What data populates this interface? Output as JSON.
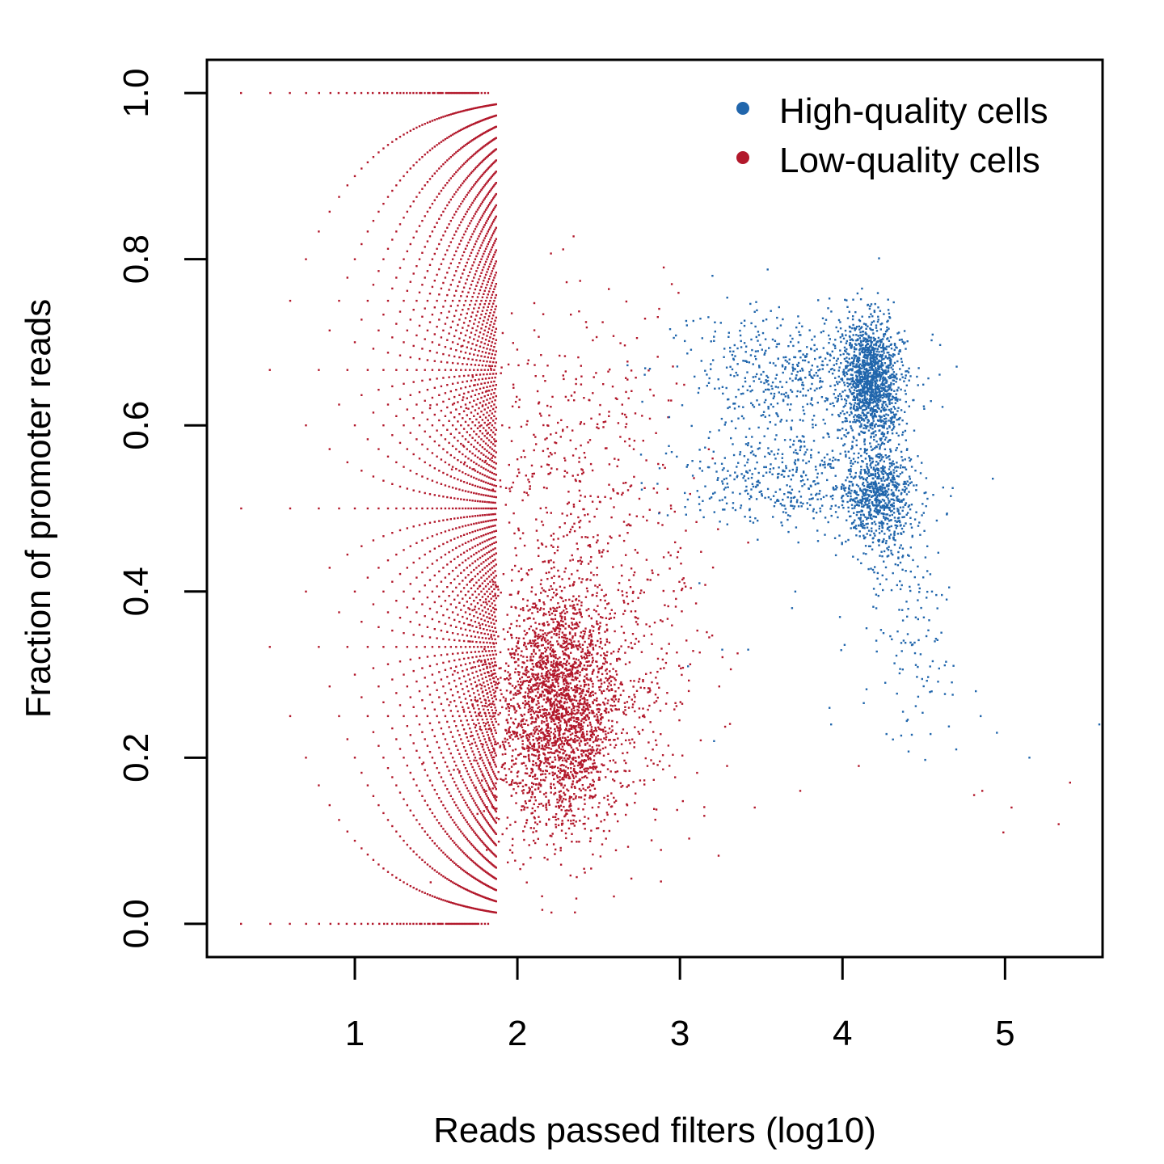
{
  "chart_data": {
    "type": "scatter",
    "title": "",
    "xlabel": "Reads passed filters (log10)",
    "ylabel": "Fraction of promoter reads",
    "xlim": [
      0.09,
      5.6
    ],
    "ylim": [
      -0.04,
      1.04
    ],
    "x_ticks": [
      1,
      2,
      3,
      4,
      5
    ],
    "x_tick_labels": [
      "1",
      "2",
      "3",
      "4",
      "5"
    ],
    "y_ticks": [
      0.0,
      0.2,
      0.4,
      0.6,
      0.8,
      1.0
    ],
    "y_tick_labels": [
      "0.0",
      "0.2",
      "0.4",
      "0.6",
      "0.8",
      "1.0"
    ],
    "grid": false,
    "legend_position": "top-right",
    "series": [
      {
        "name": "High-quality cells",
        "color": "#2166ac",
        "clusters": [
          {
            "center": [
              4.18,
              0.655
            ],
            "spread": [
              0.09,
              0.035
            ],
            "n": 1300
          },
          {
            "center": [
              4.22,
              0.515
            ],
            "spread": [
              0.1,
              0.03
            ],
            "n": 700
          },
          {
            "center": [
              3.7,
              0.66
            ],
            "spread": [
              0.35,
              0.04
            ],
            "n": 550
          },
          {
            "center": [
              3.65,
              0.535
            ],
            "spread": [
              0.35,
              0.03
            ],
            "n": 450
          },
          {
            "center": [
              4.35,
              0.43
            ],
            "spread": [
              0.15,
              0.06
            ],
            "n": 160
          },
          {
            "center": [
              4.5,
              0.3
            ],
            "spread": [
              0.1,
              0.05
            ],
            "n": 50
          }
        ],
        "sparse_points": [
          [
            5.58,
            0.24
          ],
          [
            5.15,
            0.2
          ],
          [
            4.95,
            0.23
          ],
          [
            4.85,
            0.25
          ],
          [
            4.82,
            0.28
          ],
          [
            4.7,
            0.21
          ],
          [
            3.93,
            0.24
          ],
          [
            3.92,
            0.26
          ],
          [
            3.71,
            0.4
          ],
          [
            3.69,
            0.38
          ],
          [
            3.42,
            0.33
          ],
          [
            3.26,
            0.33
          ],
          [
            3.21,
            0.22
          ],
          [
            3.12,
            0.41
          ],
          [
            3.2,
            0.78
          ],
          [
            3.05,
            0.31
          ]
        ]
      },
      {
        "name": "Low-quality cells",
        "color": "#b2182b",
        "grid_fractions": "k/n for n = 2 to 74 reads",
        "clusters": [
          {
            "center": [
              2.25,
              0.26
            ],
            "spread": [
              0.2,
              0.075
            ],
            "n": 2600
          },
          {
            "center": [
              2.3,
              0.58
            ],
            "spread": [
              0.3,
              0.09
            ],
            "n": 350
          },
          {
            "center": [
              2.6,
              0.32
            ],
            "spread": [
              0.3,
              0.11
            ],
            "n": 450
          }
        ],
        "zero_one_row_x": [
          0.3,
          0.48,
          0.6,
          0.7,
          0.78,
          0.85,
          0.9,
          0.95,
          1.0,
          1.04,
          1.08,
          1.11,
          1.15,
          1.18,
          1.2,
          1.23,
          1.26,
          1.28,
          1.3,
          1.32,
          1.34,
          1.36,
          1.38,
          1.4,
          1.41,
          1.43,
          1.45,
          1.46,
          1.48,
          1.49,
          1.51,
          1.52,
          1.53,
          1.54,
          1.56,
          1.57,
          1.58,
          1.59,
          1.6,
          1.61,
          1.62,
          1.63,
          1.64,
          1.65,
          1.66,
          1.67,
          1.68,
          1.69,
          1.7,
          1.71,
          1.72,
          1.73,
          1.74,
          1.75,
          1.76,
          1.78,
          1.8,
          1.82
        ],
        "sparse_points": [
          [
            5.4,
            0.17
          ],
          [
            5.33,
            0.12
          ],
          [
            5.04,
            0.14
          ],
          [
            4.99,
            0.11
          ],
          [
            4.86,
            0.16
          ],
          [
            4.81,
            0.155
          ],
          [
            4.1,
            0.19
          ],
          [
            3.74,
            0.16
          ],
          [
            3.46,
            0.14
          ],
          [
            3.29,
            0.19
          ],
          [
            3.15,
            0.13
          ],
          [
            2.93,
            0.63
          ],
          [
            2.9,
            0.79
          ],
          [
            2.95,
            0.77
          ]
        ]
      }
    ]
  }
}
